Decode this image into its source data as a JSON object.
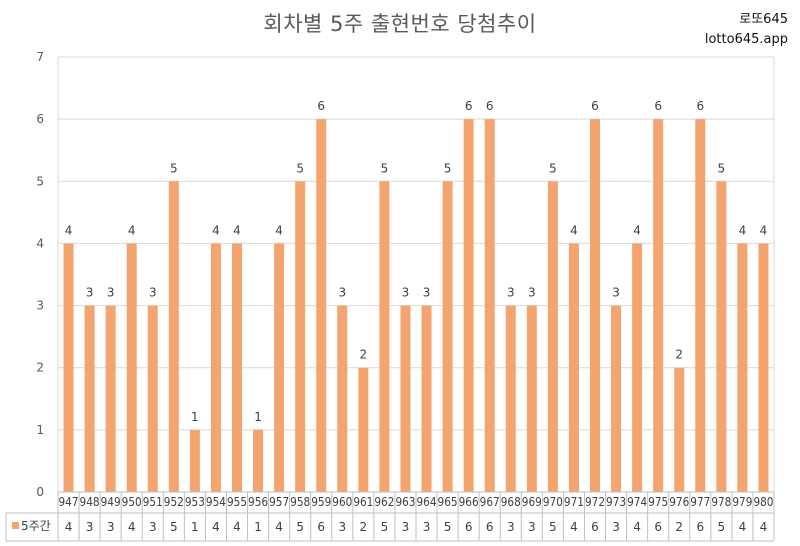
{
  "brand": {
    "name": "로또645",
    "site": "lotto645.app"
  },
  "chart_data": {
    "type": "bar",
    "title": "회차별 5주 출현번호 당첨추이",
    "categories": [
      "947",
      "948",
      "949",
      "950",
      "951",
      "952",
      "953",
      "954",
      "955",
      "956",
      "957",
      "958",
      "959",
      "960",
      "961",
      "962",
      "963",
      "964",
      "965",
      "966",
      "967",
      "968",
      "969",
      "970",
      "971",
      "972",
      "973",
      "974",
      "975",
      "976",
      "977",
      "978",
      "979",
      "980"
    ],
    "series": [
      {
        "name": "5주간",
        "values": [
          4,
          3,
          3,
          4,
          3,
          5,
          1,
          4,
          4,
          1,
          4,
          5,
          6,
          3,
          2,
          5,
          3,
          3,
          5,
          6,
          6,
          3,
          3,
          5,
          4,
          6,
          3,
          4,
          6,
          2,
          6,
          5,
          4,
          4
        ]
      }
    ],
    "ylim": [
      0,
      7
    ],
    "yticks": [
      0,
      1,
      2,
      3,
      4,
      5,
      6,
      7
    ],
    "grid": true,
    "data_table": true,
    "bar_color": "#F4A46E"
  }
}
